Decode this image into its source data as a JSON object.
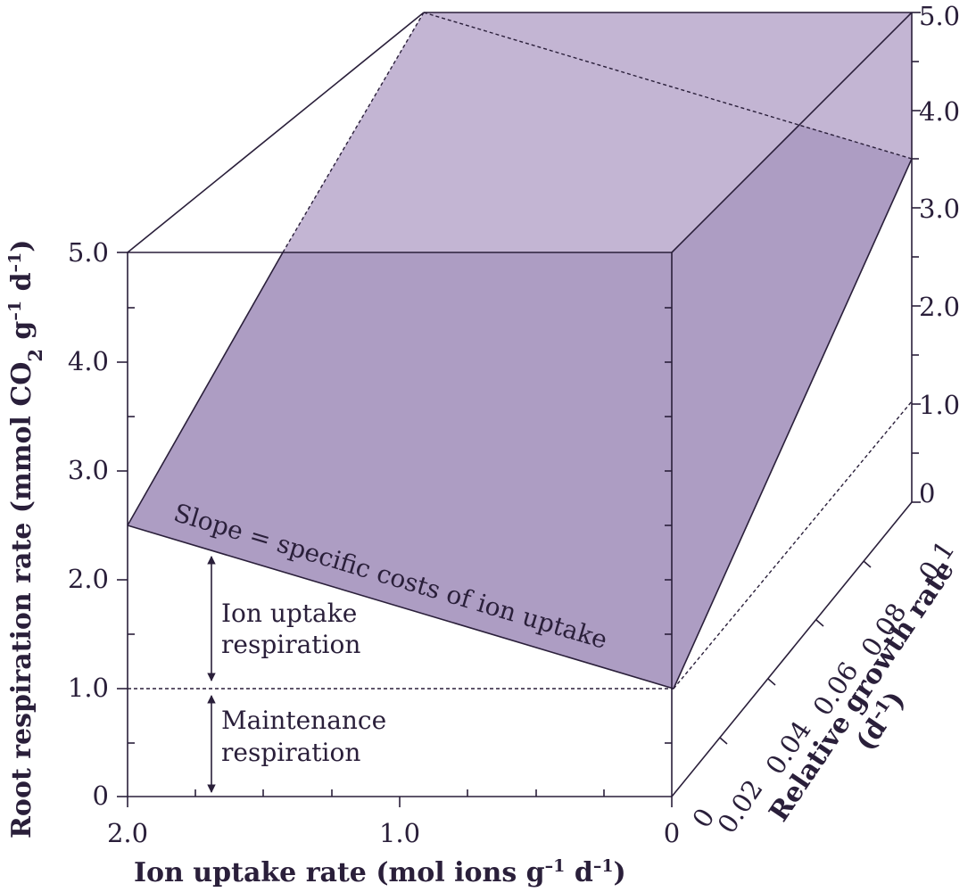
{
  "figure": {
    "y_axis": {
      "title_main": "Root respiration rate (mmol CO",
      "title_sub": "2",
      "title_mid": " g",
      "title_sup1": "–1",
      "title_end": " d",
      "title_sup2": "–1",
      "title_close": ")",
      "ticks": [
        "0",
        "1.0",
        "2.0",
        "3.0",
        "4.0",
        "5.0"
      ]
    },
    "x_axis": {
      "title_main": "Ion uptake rate (mol ions g",
      "title_sup1": "–1",
      "title_mid": " d",
      "title_sup2": "–1",
      "title_close": ")",
      "ticks": [
        "2.0",
        "1.0",
        "0"
      ]
    },
    "z_axis": {
      "title_line1": "Relative growth rate",
      "title_line2_open": "(d",
      "title_line2_sup": "–1",
      "title_line2_close": ")",
      "ticks": [
        "0",
        "0.02",
        "0.04",
        "0.06",
        "0.08",
        "0.1"
      ]
    },
    "right_axis": {
      "ticks": [
        "0",
        "1.0",
        "2.0",
        "3.0",
        "4.0",
        "5.0"
      ]
    },
    "annotations": {
      "slope": "Slope = specific costs of ion uptake",
      "ion_uptake_line1": "Ion uptake",
      "ion_uptake_line2": "respiration",
      "maintenance_line1": "Maintenance",
      "maintenance_line2": "respiration"
    },
    "colors": {
      "plane_front": "#ad9dc3",
      "plane_back": "#c3b5d3",
      "ink": "#2a1f3a"
    }
  }
}
